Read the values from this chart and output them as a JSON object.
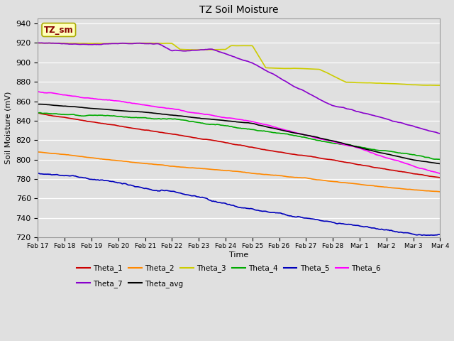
{
  "title": "TZ Soil Moisture",
  "xlabel": "Time",
  "ylabel": "Soil Moisture (mV)",
  "ylim": [
    720,
    945
  ],
  "yticks": [
    720,
    740,
    760,
    780,
    800,
    820,
    840,
    860,
    880,
    900,
    920,
    940
  ],
  "plot_bg_color": "#e0e0e0",
  "fig_bg_color": "#e0e0e0",
  "series": {
    "Theta_1": {
      "color": "#cc0000"
    },
    "Theta_2": {
      "color": "#ff8800"
    },
    "Theta_3": {
      "color": "#cccc00"
    },
    "Theta_4": {
      "color": "#00aa00"
    },
    "Theta_5": {
      "color": "#0000bb"
    },
    "Theta_6": {
      "color": "#ff00ff"
    },
    "Theta_7": {
      "color": "#8800cc"
    },
    "Theta_avg": {
      "color": "#000000"
    }
  },
  "n_points": 400,
  "x_tick_labels": [
    "Feb 17",
    "Feb 18",
    "Feb 19",
    "Feb 20",
    "Feb 21",
    "Feb 22",
    "Feb 23",
    "Feb 24",
    "Feb 25",
    "Feb 26",
    "Feb 27",
    "Feb 28",
    "Mar 1",
    "Mar 2",
    "Mar 3",
    "Mar 4"
  ],
  "legend_label": "TZ_sm",
  "legend_box_facecolor": "#ffffbb",
  "legend_box_edgecolor": "#aaaa00",
  "legend_row1": [
    "Theta_1",
    "Theta_2",
    "Theta_3",
    "Theta_4",
    "Theta_5",
    "Theta_6"
  ],
  "legend_row2": [
    "Theta_7",
    "Theta_avg"
  ]
}
